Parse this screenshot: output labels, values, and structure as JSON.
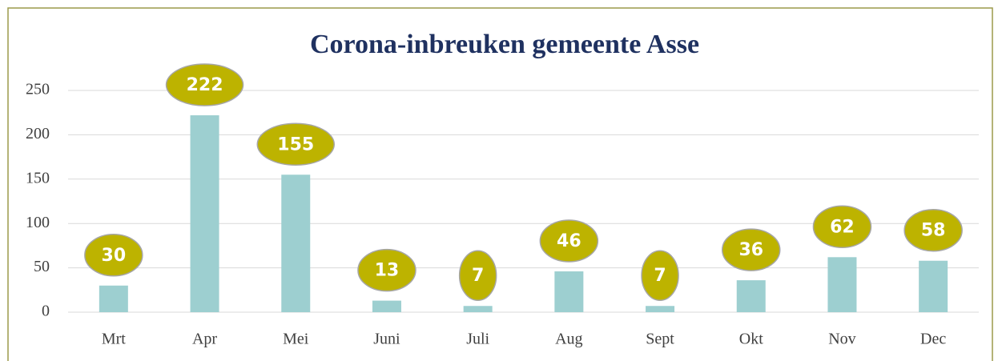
{
  "chart_data": {
    "type": "bar",
    "title": "Corona-inbreuken gemeente Asse",
    "categories": [
      "Mrt",
      "Apr",
      "Mei",
      "Juni",
      "Juli",
      "Aug",
      "Sept",
      "Okt",
      "Nov",
      "Dec"
    ],
    "values": [
      30,
      222,
      155,
      13,
      7,
      46,
      7,
      36,
      62,
      58
    ],
    "color": "#9dcfd0",
    "label_color": "#bdb300",
    "ylim": [
      0,
      250
    ],
    "yticks": [
      0,
      50,
      100,
      150,
      200,
      250
    ],
    "grid": true
  }
}
